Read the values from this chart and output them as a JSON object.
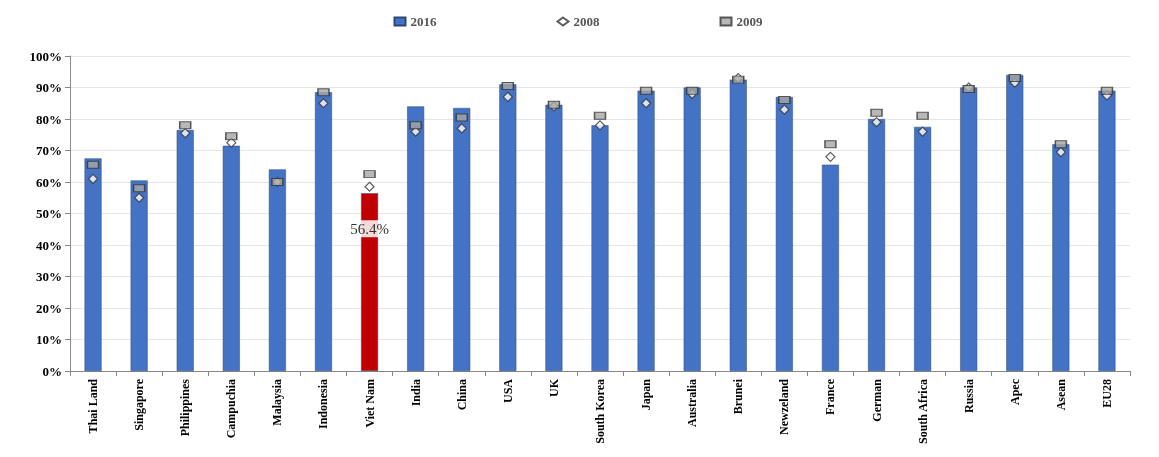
{
  "chart_data": {
    "type": "bar",
    "categories": [
      "Thai Land",
      "Singapore",
      "Philippines",
      "Campuchia",
      "Malaysia",
      "Indonesia",
      "Viet Nam",
      "India",
      "China",
      "USA",
      "UK",
      "South Korea",
      "Japan",
      "Australia",
      "Brunei",
      "Newzeland",
      "France",
      "German",
      "South Africa",
      "Russia",
      "Apec",
      "Asean",
      "EU28"
    ],
    "series": [
      {
        "name": "2016",
        "color": "#4472c4",
        "colors": [
          "#4472c4",
          "#4472c4",
          "#4472c4",
          "#4472c4",
          "#4472c4",
          "#4472c4",
          "#c00000",
          "#4472c4",
          "#4472c4",
          "#4472c4",
          "#4472c4",
          "#4472c4",
          "#4472c4",
          "#4472c4",
          "#4472c4",
          "#4472c4",
          "#4472c4",
          "#4472c4",
          "#4472c4",
          "#4472c4",
          "#4472c4",
          "#4472c4",
          "#4472c4"
        ],
        "values": [
          67.5,
          60.5,
          76.5,
          71.5,
          64,
          88.5,
          56.4,
          84,
          83.5,
          91,
          84.5,
          78,
          89,
          90,
          92.5,
          87,
          65.5,
          80,
          77.5,
          90,
          94,
          72,
          89
        ],
        "value_labels": [
          null,
          null,
          null,
          null,
          null,
          null,
          "56.4%",
          null,
          null,
          null,
          null,
          null,
          null,
          null,
          null,
          null,
          null,
          null,
          null,
          null,
          null,
          null,
          null
        ]
      },
      {
        "name": "2008",
        "type": "scatter",
        "marker": "diamond",
        "color": "#ffffff",
        "values": [
          61,
          55,
          75.5,
          72.5,
          60,
          85,
          58.5,
          76,
          77,
          87,
          84,
          78,
          85,
          88,
          93,
          83,
          68,
          79,
          76,
          90,
          91.5,
          69.5,
          87.5
        ]
      },
      {
        "name": "2009",
        "type": "scatter",
        "marker": "square",
        "color": "#a6a6a6",
        "values": [
          65.5,
          58,
          78,
          74.5,
          60,
          88.5,
          62.5,
          78,
          80.5,
          90.5,
          84.5,
          81,
          89,
          89,
          92.5,
          86,
          72,
          82,
          81,
          89.5,
          93,
          72,
          89
        ]
      }
    ],
    "ylim": [
      0,
      100
    ],
    "yticks": [
      {
        "value": 0,
        "label": "0%"
      },
      {
        "value": 10,
        "label": "10%"
      },
      {
        "value": 20,
        "label": "20%"
      },
      {
        "value": 30,
        "label": "30%"
      },
      {
        "value": 40,
        "label": "40%"
      },
      {
        "value": 50,
        "label": "50%"
      },
      {
        "value": 60,
        "label": "60%"
      },
      {
        "value": 70,
        "label": "70%"
      },
      {
        "value": 80,
        "label": "80%"
      },
      {
        "value": 90,
        "label": "90%"
      },
      {
        "value": 100,
        "label": "100%"
      }
    ],
    "grid": "y",
    "legend": "top"
  }
}
